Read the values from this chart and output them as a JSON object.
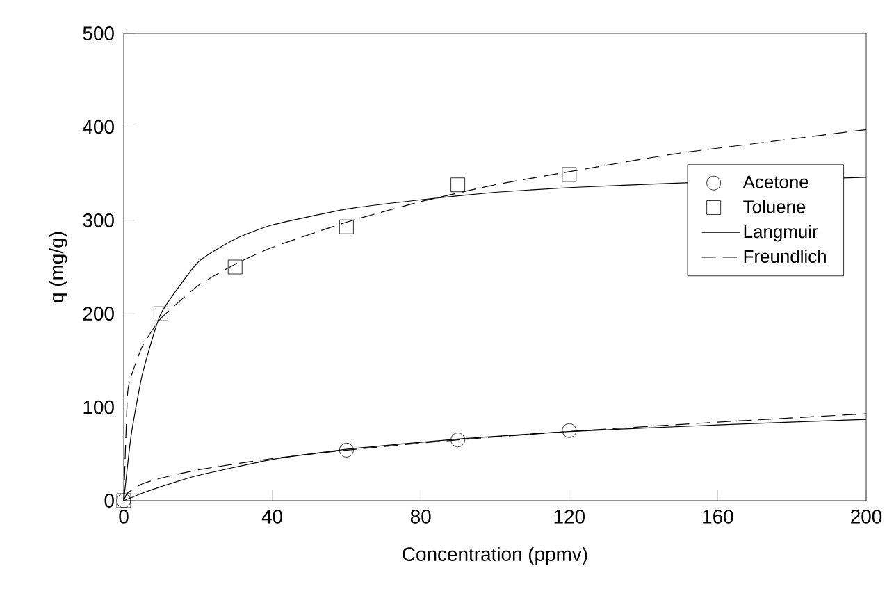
{
  "chart_data": {
    "type": "scatter",
    "xlabel": "Concentration (ppmv)",
    "ylabel": "q (mg/g)",
    "xlim": [
      0,
      200
    ],
    "ylim": [
      0,
      500
    ],
    "xticks": [
      0,
      40,
      80,
      120,
      160,
      200
    ],
    "yticks": [
      0,
      100,
      200,
      300,
      400,
      500
    ],
    "grid": false,
    "legend": "right",
    "series": [
      {
        "name": "Acetone",
        "marker": "circle",
        "color": "#000000",
        "x": [
          0,
          60,
          90,
          120
        ],
        "values": [
          0,
          54,
          65,
          75
        ]
      },
      {
        "name": "Toluene",
        "marker": "square",
        "color": "#000000",
        "x": [
          0,
          10,
          30,
          60,
          90,
          120
        ],
        "values": [
          0,
          200,
          250,
          293,
          338,
          349
        ]
      },
      {
        "name": "Langmuir",
        "type": "line",
        "line_style": "solid",
        "color": "#000000",
        "x": [
          0,
          5,
          10,
          20,
          40,
          60,
          90,
          120,
          160,
          200
        ],
        "values": [
          0,
          8,
          15,
          27,
          44,
          55,
          66,
          74,
          81,
          87
        ]
      },
      {
        "name": "Freundlich",
        "type": "line",
        "line_style": "dashed",
        "color": "#000000",
        "x": [
          0,
          1,
          5,
          10,
          20,
          40,
          60,
          90,
          120,
          160,
          200
        ],
        "values": [
          0,
          8,
          18,
          24,
          33,
          45,
          54,
          65,
          74,
          84,
          93
        ]
      },
      {
        "type": "line",
        "line_style": "solid",
        "color": "#000000",
        "x": [
          0,
          2,
          5,
          10,
          20,
          30,
          40,
          60,
          80,
          100,
          120,
          150,
          200
        ],
        "values": [
          0,
          70,
          135,
          200,
          255,
          280,
          295,
          312,
          322,
          330,
          335,
          340,
          346
        ]
      },
      {
        "type": "line",
        "line_style": "dashed",
        "color": "#000000",
        "x": [
          0,
          1,
          2,
          5,
          10,
          20,
          30,
          40,
          60,
          80,
          100,
          120,
          150,
          200
        ],
        "values": [
          0,
          113,
          133,
          165,
          195,
          230,
          253,
          271,
          298,
          320,
          338,
          352,
          372,
          397
        ]
      }
    ]
  }
}
